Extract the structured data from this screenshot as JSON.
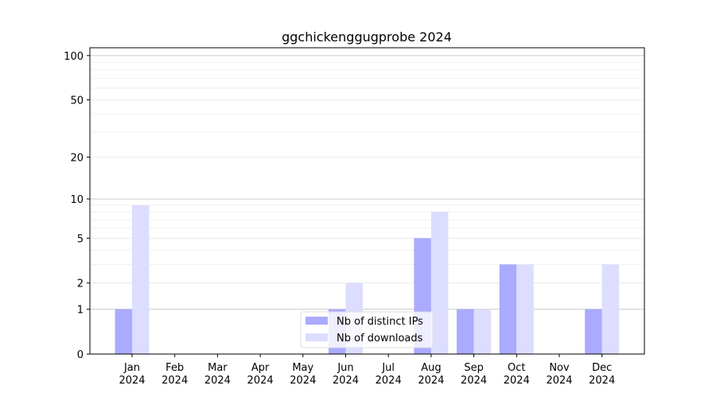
{
  "chart_data": {
    "type": "bar",
    "title": "ggchickenggugprobe 2024",
    "xlabel": "",
    "ylabel": "",
    "yscale": "log10(1+y)",
    "ylim": [
      0,
      113
    ],
    "yticks": [
      0,
      1,
      2,
      5,
      10,
      20,
      50,
      100
    ],
    "grid": true,
    "legend_position": "bottom-center",
    "categories": [
      [
        "Jan",
        "2024"
      ],
      [
        "Feb",
        "2024"
      ],
      [
        "Mar",
        "2024"
      ],
      [
        "Apr",
        "2024"
      ],
      [
        "May",
        "2024"
      ],
      [
        "Jun",
        "2024"
      ],
      [
        "Jul",
        "2024"
      ],
      [
        "Aug",
        "2024"
      ],
      [
        "Sep",
        "2024"
      ],
      [
        "Oct",
        "2024"
      ],
      [
        "Nov",
        "2024"
      ],
      [
        "Dec",
        "2024"
      ]
    ],
    "series": [
      {
        "name": "Nb of distinct IPs",
        "color": "#aaaaff",
        "values": [
          1,
          0,
          0,
          0,
          0,
          1,
          0,
          5,
          1,
          3,
          0,
          1
        ]
      },
      {
        "name": "Nb of downloads",
        "color": "#ddddff",
        "values": [
          9,
          0,
          0,
          0,
          0,
          2,
          0,
          8,
          1,
          3,
          0,
          3
        ]
      }
    ]
  }
}
